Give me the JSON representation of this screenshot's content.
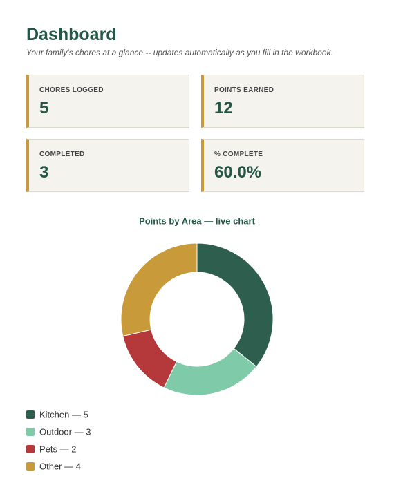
{
  "header": {
    "title": "Dashboard",
    "subtitle": "Your family's chores at a glance -- updates automatically as you fill in the workbook."
  },
  "cards": [
    {
      "label": "CHORES LOGGED",
      "value": 5
    },
    {
      "label": "POINTS EARNED",
      "value": 12
    },
    {
      "label": "COMPLETED",
      "value": 3
    },
    {
      "label": "% COMPLETE",
      "value": "60.0%"
    }
  ],
  "chart_data": {
    "type": "pie",
    "title": "Points by Area — live chart",
    "categories": [
      "Kitchen — 5",
      "Outdoor — 3",
      "Pets — 2",
      "Other — 4"
    ],
    "values": [
      5,
      3,
      2,
      4
    ],
    "colors": [
      "#2e5e4e",
      "#7fcaa9",
      "#b5393b",
      "#c99a3a"
    ],
    "legend": "bottom-left"
  }
}
